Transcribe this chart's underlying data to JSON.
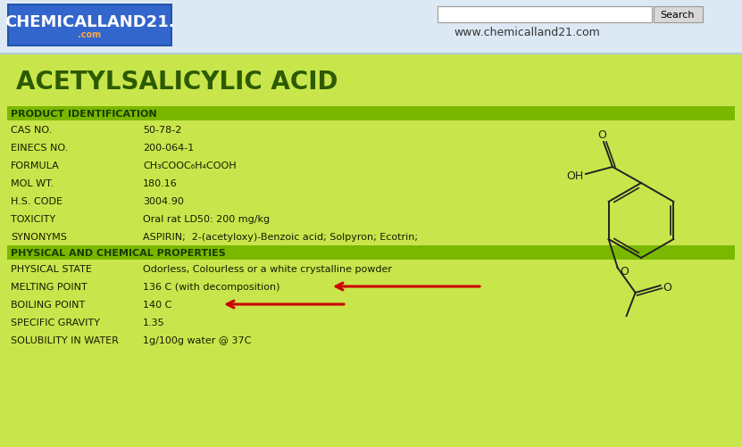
{
  "header_bg": "#dce9f5",
  "header_url": "www.chemicalland21.com",
  "header_search": "Search",
  "main_bg": "#c8e64c",
  "title": "ACETYLSALICYLIC ACID",
  "title_color": "#2d5a00",
  "section_header_bg": "#7ab800",
  "section_header_color": "#1a3a00",
  "row_text_color": "#1a1a00",
  "product_id_header": "PRODUCT IDENTIFICATION",
  "rows_product": [
    [
      "CAS NO.",
      "50-78-2"
    ],
    [
      "EINECS NO.",
      "200-064-1"
    ],
    [
      "FORMULA",
      "CH₃COOC₆H₄COOH"
    ],
    [
      "MOL WT.",
      "180.16"
    ],
    [
      "H.S. CODE",
      "3004.90"
    ],
    [
      "TOXICITY",
      "Oral rat LD50: 200 mg/kg"
    ],
    [
      "SYNONYMS",
      "ASPIRIN;  2-(acetyloxy)-Benzoic acid; Solpyron; Ecotrin;"
    ]
  ],
  "phys_chem_header": "PHYSICAL AND CHEMICAL PROPERTIES",
  "rows_phys": [
    [
      "PHYSICAL STATE",
      "Odorless, Colourless or a white crystalline powder"
    ],
    [
      "MELTING POINT",
      "136 C (with decomposition)"
    ],
    [
      "BOILING POINT",
      "140 C"
    ],
    [
      "SPECIFIC GRAVITY",
      "1.35"
    ],
    [
      "SOLUBILITY IN WATER",
      "1g/100g water @ 37C"
    ]
  ],
  "arrow_color": "#cc0000",
  "fig_width": 8.31,
  "fig_height": 5.02
}
